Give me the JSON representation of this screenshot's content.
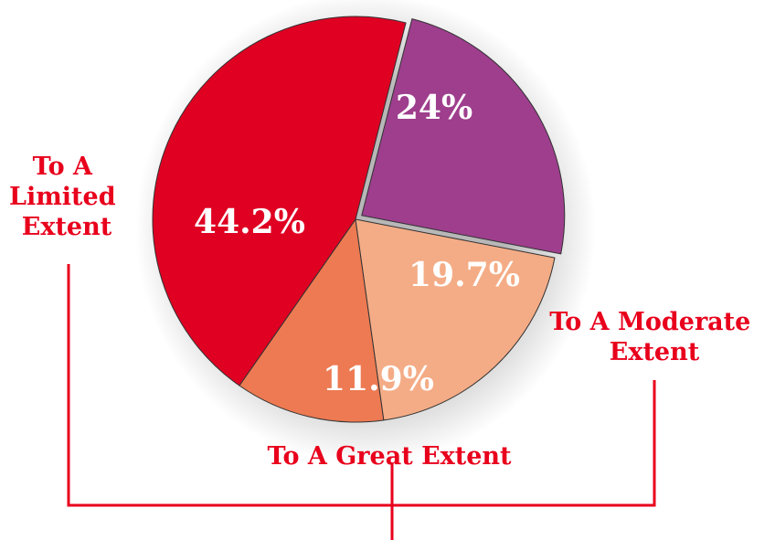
{
  "chart_data": {
    "type": "pie",
    "title": "",
    "slices": [
      {
        "label": "To A Great Extent",
        "value": 11.9,
        "display": "11.9%",
        "color": "#ed7a52"
      },
      {
        "label": "To A Limited Extent",
        "value": 44.2,
        "display": "44.2%",
        "color": "#df0022"
      },
      {
        "label": "",
        "value": 24.0,
        "display": "24%",
        "color": "#9e3e8d"
      },
      {
        "label": "To A Moderate Extent",
        "value": 19.7,
        "display": "19.7%",
        "color": "#f4ac86"
      }
    ],
    "category_labels": {
      "limited": [
        "To A",
        "Limited",
        "Extent"
      ],
      "moderate": [
        "To A Moderate",
        "Extent"
      ],
      "great": [
        "To A Great Extent"
      ]
    },
    "label_color": "#e8001c",
    "connector_color": "#e8001c"
  }
}
